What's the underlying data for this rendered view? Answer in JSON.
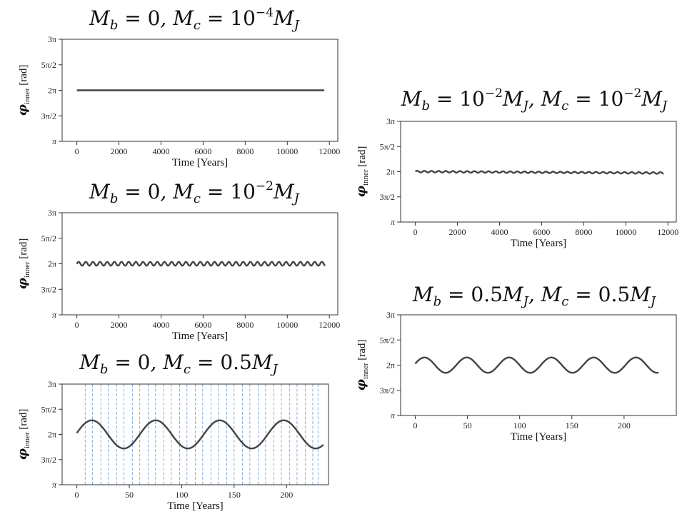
{
  "chart_data": [
    {
      "type": "line",
      "title": "M_b = 0, M_c = 10^{-4} M_J",
      "title_parts": {
        "a": "b",
        "b_val": "0",
        "c": "c",
        "c_val": "10",
        "c_exp": "−4",
        "c_unit": "M",
        "c_unit_sub": "J"
      },
      "xlabel": "Time [Years]",
      "ylabel_symbol": "φ",
      "ylabel_sub": "inner",
      "ylabel_unit": "[rad]",
      "xlim": [
        -700,
        12400
      ],
      "ylim": [
        3.1416,
        9.4248
      ],
      "xticks": [
        "0",
        "2000",
        "4000",
        "6000",
        "8000",
        "10000",
        "12000"
      ],
      "yticks": [
        "π",
        "3π/2",
        "2π",
        "5π/2",
        "3π"
      ],
      "series": [
        {
          "x_start": 0,
          "x_end": 11800,
          "mean": 6.2832,
          "amplitude": 0.0,
          "period": 480,
          "step": 60
        }
      ],
      "vlines": []
    },
    {
      "type": "line",
      "title": "M_b = 0, M_c = 10^{-2} M_J",
      "title_parts": {
        "a": "b",
        "b_val": "0",
        "c": "c",
        "c_val": "10",
        "c_exp": "−2",
        "c_unit": "M",
        "c_unit_sub": "J"
      },
      "xlabel": "Time [Years]",
      "ylabel_symbol": "φ",
      "ylabel_sub": "inner",
      "ylabel_unit": "[rad]",
      "xlim": [
        -700,
        12400
      ],
      "ylim": [
        3.1416,
        9.4248
      ],
      "xticks": [
        "0",
        "2000",
        "4000",
        "6000",
        "8000",
        "10000",
        "12000"
      ],
      "yticks": [
        "π",
        "3π/2",
        "2π",
        "5π/2",
        "3π"
      ],
      "series": [
        {
          "x_start": 0,
          "x_end": 11800,
          "mean": 6.2832,
          "amplitude": 0.12,
          "period": 340,
          "step": 20
        }
      ],
      "vlines": []
    },
    {
      "type": "line",
      "title": "M_b = 0, M_c = 0.5 M_J",
      "title_parts": {
        "a": "b",
        "b_val": "0",
        "c": "c",
        "c_val": "0.5",
        "c_exp": "",
        "c_unit": "M",
        "c_unit_sub": "J"
      },
      "xlabel": "Time [Years]",
      "ylabel_symbol": "φ",
      "ylabel_sub": "inner",
      "ylabel_unit": "[rad]",
      "xlim": [
        -14,
        240
      ],
      "ylim": [
        3.1416,
        9.4248
      ],
      "xticks": [
        "0",
        "50",
        "100",
        "150",
        "200"
      ],
      "yticks": [
        "π",
        "3π/2",
        "2π",
        "5π/2",
        "3π"
      ],
      "series": [
        {
          "x_start": 0,
          "x_end": 235,
          "mean": 6.2832,
          "amplitude": 0.88,
          "period": 61,
          "phase": 0.1,
          "step": 1
        }
      ],
      "vlines": [
        8,
        15,
        23,
        30,
        38,
        45,
        53,
        60,
        68,
        75,
        83,
        90,
        98,
        105,
        113,
        120,
        128,
        135,
        143,
        150,
        158,
        165,
        173,
        180,
        188,
        195,
        203,
        210,
        218,
        225,
        230
      ]
    },
    {
      "type": "line",
      "title": "M_b = 10^{-2} M_J, M_c = 10^{-2} M_J",
      "title_parts": {
        "a": "b",
        "b_val": "10",
        "b_exp": "−2",
        "b_unit": "M",
        "b_unit_sub": "J",
        "c": "c",
        "c_val": "10",
        "c_exp": "−2",
        "c_unit": "M",
        "c_unit_sub": "J"
      },
      "xlabel": "Time [Years]",
      "ylabel_symbol": "φ",
      "ylabel_sub": "inner",
      "ylabel_unit": "[rad]",
      "xlim": [
        -700,
        12400
      ],
      "ylim": [
        3.1416,
        9.4248
      ],
      "xticks": [
        "0",
        "2000",
        "4000",
        "6000",
        "8000",
        "10000",
        "12000"
      ],
      "yticks": [
        "π",
        "3π/2",
        "2π",
        "5π/2",
        "3π"
      ],
      "series": [
        {
          "x_start": 0,
          "x_end": 11800,
          "mean": 6.29,
          "mean_end": 6.2,
          "amplitude": 0.05,
          "period": 340,
          "step": 20
        }
      ],
      "vlines": []
    },
    {
      "type": "line",
      "title": "M_b = 0.5 M_J, M_c = 0.5 M_J",
      "title_parts": {
        "a": "b",
        "b_val": "0.5",
        "b_exp": "",
        "b_unit": "M",
        "b_unit_sub": "J",
        "c": "c",
        "c_val": "0.5",
        "c_exp": "",
        "c_unit": "M",
        "c_unit_sub": "J"
      },
      "xlabel": "Time [Years]",
      "ylabel_symbol": "φ",
      "ylabel_sub": "inner",
      "ylabel_unit": "[rad]",
      "xlim": [
        -14,
        250
      ],
      "ylim": [
        3.1416,
        9.4248
      ],
      "xticks": [
        "0",
        "50",
        "100",
        "150",
        "200"
      ],
      "yticks": [
        "π",
        "3π/2",
        "2π",
        "5π/2",
        "3π"
      ],
      "series": [
        {
          "x_start": 0,
          "x_end": 233,
          "mean": 6.2832,
          "amplitude": 0.48,
          "period": 40.5,
          "phase": 0.2,
          "step": 1
        }
      ],
      "vlines": []
    }
  ]
}
